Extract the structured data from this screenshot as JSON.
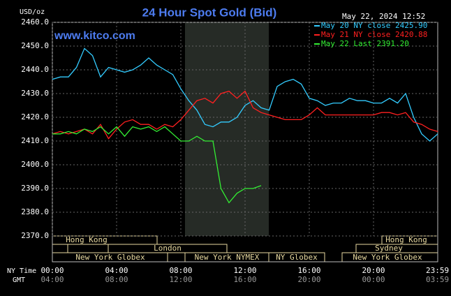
{
  "chart_data": {
    "type": "line",
    "title": "24 Hour Spot Gold (Bid)",
    "y_unit": "USD/oz",
    "watermark": "www.kitco.com",
    "timestamp": "May 22, 2024 12:52",
    "x": [
      0,
      0.5,
      1,
      1.5,
      2,
      2.5,
      3,
      3.5,
      4,
      4.5,
      5,
      5.5,
      6,
      6.5,
      7,
      7.5,
      8,
      8.5,
      9,
      9.5,
      10,
      10.5,
      11,
      11.5,
      12,
      12.5,
      13,
      13.5,
      14,
      14.5,
      15,
      15.5,
      16,
      16.5,
      17,
      17.5,
      18,
      18.5,
      19,
      19.5,
      20,
      20.5,
      21,
      21.5,
      22,
      22.5,
      23,
      23.5,
      24
    ],
    "series": [
      {
        "name": "May 20 NY close 2425.90",
        "color": "#33ccff",
        "values": [
          2436,
          2437,
          2437,
          2441,
          2449,
          2446,
          2437,
          2441,
          2440,
          2439,
          2440,
          2442,
          2445,
          2442,
          2440,
          2438,
          2432,
          2427,
          2423,
          2417,
          2416,
          2418,
          2418,
          2420,
          2425,
          2427,
          2424,
          2423,
          2433,
          2435,
          2436,
          2434,
          2428,
          2427,
          2425,
          2426,
          2426,
          2428,
          2427,
          2427,
          2426,
          2426,
          2428,
          2426,
          2430,
          2420,
          2413,
          2410,
          2413
        ]
      },
      {
        "name": "May 21 NY close 2420.88",
        "color": "#ff2020",
        "values": [
          2413,
          2414,
          2413,
          2414,
          2415,
          2413,
          2417,
          2411,
          2415,
          2418,
          2419,
          2417,
          2417,
          2415,
          2417,
          2416,
          2419,
          2423,
          2427,
          2428,
          2426,
          2430,
          2431,
          2428,
          2431,
          2424,
          2422,
          2421,
          2420,
          2419,
          2419,
          2419,
          2421,
          2424,
          2421,
          2421,
          2421,
          2421,
          2421,
          2421,
          2421,
          2422,
          2422,
          2421,
          2422,
          2418,
          2417,
          2415,
          2414
        ]
      },
      {
        "name": "May 22 Last 2391.20",
        "color": "#33ee33",
        "values": [
          2413,
          2413,
          2414,
          2413,
          2415,
          2414,
          2416,
          2413,
          2416,
          2412,
          2416,
          2415,
          2416,
          2414,
          2416,
          2413,
          2410,
          2410,
          2412,
          2410,
          2410,
          2390,
          2384,
          2388,
          2390,
          2390,
          2391.2,
          null,
          null,
          null,
          null,
          null,
          null,
          null,
          null,
          null,
          null,
          null,
          null,
          null,
          null,
          null,
          null,
          null,
          null,
          null,
          null,
          null,
          null
        ]
      }
    ],
    "xlim": [
      0,
      24
    ],
    "xticks": [
      {
        "value": 0,
        "label": "00:00"
      },
      {
        "value": 4,
        "label": "04:00"
      },
      {
        "value": 8,
        "label": "08:00"
      },
      {
        "value": 12,
        "label": "12:00"
      },
      {
        "value": 16,
        "label": "16:00"
      },
      {
        "value": 20,
        "label": "20:00"
      },
      {
        "value": 23.98,
        "label": "23:59"
      }
    ],
    "gmt_ticks": [
      "04:00",
      "08:00",
      "12:00",
      "16:00",
      "20:00",
      "00:00",
      "03:59"
    ],
    "x_row_labels": [
      "NY Time",
      "GMT"
    ],
    "ylim": [
      2370,
      2460
    ],
    "yticks": [
      {
        "value": 2370,
        "label": "2370.0"
      },
      {
        "value": 2380,
        "label": "2380.0"
      },
      {
        "value": 2390,
        "label": "2390.0"
      },
      {
        "value": 2400,
        "label": "2400.0"
      },
      {
        "value": 2410,
        "label": "2410.0"
      },
      {
        "value": 2420,
        "label": "2420.0"
      },
      {
        "value": 2430,
        "label": "2430.0"
      },
      {
        "value": 2440,
        "label": "2440.0"
      },
      {
        "value": 2450,
        "label": "2450.0"
      },
      {
        "value": 2460,
        "label": "2460.0"
      }
    ],
    "grid": true,
    "sessions": [
      "Hong Kong",
      "Hong Kong",
      "London",
      "Sydney",
      "New York Globex",
      "New York NYMEX",
      "NY Globex",
      "New York Globex"
    ]
  }
}
